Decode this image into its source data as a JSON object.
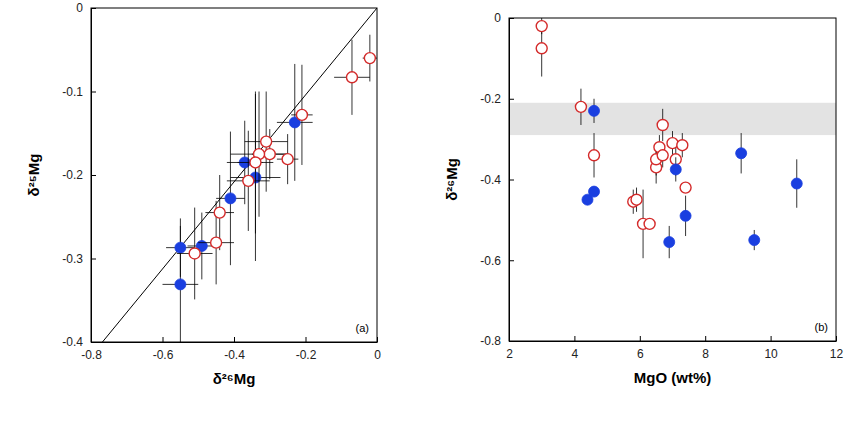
{
  "chart_data": [
    {
      "type": "scatter",
      "x_label": "δ²⁶Mg",
      "y_label": "δ²⁵Mg",
      "xlim": [
        -0.8,
        0
      ],
      "ylim": [
        -0.4,
        0
      ],
      "xticks": [
        -0.8,
        -0.6,
        -0.4,
        -0.2,
        0
      ],
      "yticks": [
        -0.4,
        -0.3,
        -0.2,
        -0.1,
        0
      ],
      "annotations": [
        "(a)"
      ],
      "series": [
        {
          "type": "line",
          "color": "#000000",
          "line_style": "solid",
          "x": [
            -0.768,
            0
          ],
          "values": [
            -0.4,
            0
          ]
        },
        {
          "type": "scatter",
          "color": "#1a3fe0",
          "marker": "filled-circle",
          "x": [
            -0.23,
            -0.37,
            -0.34,
            -0.41,
            -0.49,
            -0.55,
            -0.55
          ],
          "values": [
            -0.137,
            -0.185,
            -0.203,
            -0.228,
            -0.285,
            -0.287,
            -0.331
          ],
          "x_error": [
            0.05,
            0.05,
            0.07,
            0.04,
            0.04,
            0.04,
            0.05
          ],
          "y_error": [
            0.07,
            0.05,
            0.1,
            0.08,
            0.04,
            0.035,
            0.07
          ]
        },
        {
          "type": "scatter",
          "color": "#d42a2a",
          "marker": "open-circle",
          "x": [
            -0.02,
            -0.07,
            -0.21,
            -0.25,
            -0.31,
            -0.3,
            -0.33,
            -0.34,
            -0.36,
            -0.44,
            -0.45,
            -0.51
          ],
          "values": [
            -0.06,
            -0.083,
            -0.128,
            -0.181,
            -0.16,
            -0.175,
            -0.175,
            -0.185,
            -0.207,
            -0.245,
            -0.281,
            -0.294
          ],
          "x_error": [
            0.02,
            0.05,
            0.03,
            0.03,
            0.06,
            0.05,
            0.08,
            0.05,
            0.06,
            0.04,
            0.05,
            0.05
          ],
          "y_error": [
            0.028,
            0.045,
            0.06,
            0.03,
            0.06,
            0.03,
            0.075,
            0.085,
            0.06,
            0.045,
            0.05,
            0.055
          ]
        }
      ]
    },
    {
      "type": "scatter",
      "x_label": "MgO (wt%)",
      "y_label": "δ²⁶Mg",
      "xlim": [
        2,
        12
      ],
      "ylim": [
        -0.8,
        0
      ],
      "xticks": [
        2,
        4,
        6,
        8,
        10,
        12
      ],
      "yticks": [
        -0.8,
        -0.6,
        -0.4,
        -0.2,
        0
      ],
      "annotations": [
        "(b)"
      ],
      "band": {
        "values": [
          -0.29,
          -0.21
        ],
        "color": "#e3e3e3"
      },
      "series": [
        {
          "type": "scatter",
          "color": "#d42a2a",
          "marker": "open-circle",
          "x": [
            3.0,
            3.0,
            4.2,
            4.6,
            5.8,
            5.9,
            6.1,
            6.3,
            6.5,
            6.5,
            6.6,
            6.7,
            6.7,
            7.0,
            7.1,
            7.3,
            7.4
          ],
          "values": [
            -0.02,
            -0.075,
            -0.22,
            -0.34,
            -0.455,
            -0.45,
            -0.51,
            -0.51,
            -0.37,
            -0.35,
            -0.32,
            -0.265,
            -0.34,
            -0.31,
            -0.35,
            -0.315,
            -0.42
          ],
          "y_error": [
            0.02,
            0.07,
            0.045,
            0.055,
            0.03,
            0.03,
            0.085,
            null,
            0.04,
            0.04,
            0.03,
            0.04,
            0.03,
            0.03,
            0.04,
            0.03,
            null
          ]
        },
        {
          "type": "scatter",
          "color": "#1a3fe0",
          "marker": "filled-circle",
          "x": [
            4.4,
            4.6,
            4.6,
            6.9,
            7.1,
            7.4,
            9.1,
            9.5,
            10.8
          ],
          "values": [
            -0.45,
            -0.23,
            -0.43,
            -0.555,
            -0.375,
            -0.49,
            -0.335,
            -0.55,
            -0.41
          ],
          "y_error": [
            null,
            0.03,
            null,
            0.04,
            0.03,
            0.05,
            0.05,
            0.025,
            0.06
          ]
        }
      ]
    }
  ]
}
